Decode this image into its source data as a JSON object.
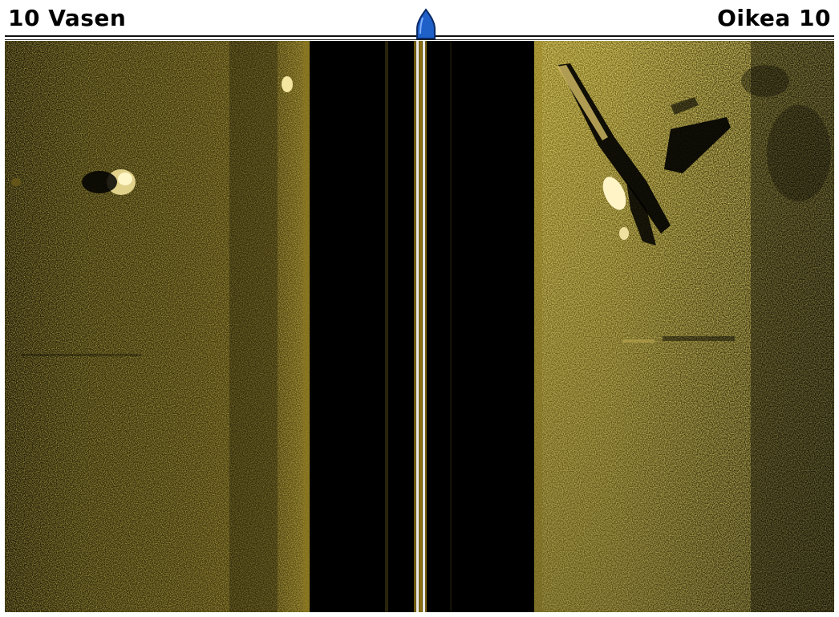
{
  "header": {
    "left_range": "10 Vasen",
    "right_range": "Oikea 10"
  },
  "icons": {
    "boat": "boat-position-icon"
  },
  "colors": {
    "sonar_gold": "#b8a02a",
    "sonar_bright": "#f0e28a",
    "water_column": "#000000",
    "boat_blue": "#1f5fc8"
  }
}
